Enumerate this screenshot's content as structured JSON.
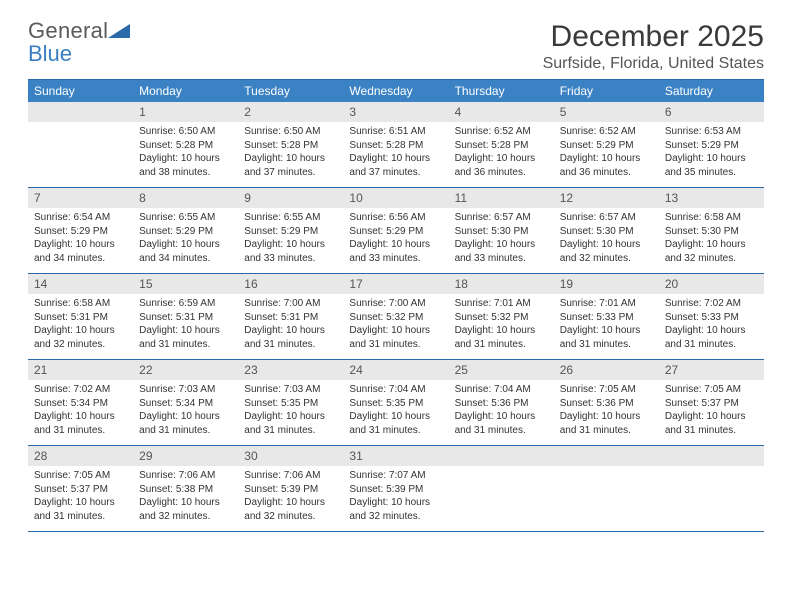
{
  "logo": {
    "general": "General",
    "blue": "Blue"
  },
  "title": "December 2025",
  "location": "Surfside, Florida, United States",
  "colors": {
    "header_bg": "#3b82c4",
    "rule": "#2a6aa8",
    "daynum_bg": "#e8e8e8",
    "text": "#333333"
  },
  "days": [
    "Sunday",
    "Monday",
    "Tuesday",
    "Wednesday",
    "Thursday",
    "Friday",
    "Saturday"
  ],
  "weeks": [
    [
      null,
      {
        "n": "1",
        "sr": "Sunrise: 6:50 AM",
        "ss": "Sunset: 5:28 PM",
        "dl1": "Daylight: 10 hours",
        "dl2": "and 38 minutes."
      },
      {
        "n": "2",
        "sr": "Sunrise: 6:50 AM",
        "ss": "Sunset: 5:28 PM",
        "dl1": "Daylight: 10 hours",
        "dl2": "and 37 minutes."
      },
      {
        "n": "3",
        "sr": "Sunrise: 6:51 AM",
        "ss": "Sunset: 5:28 PM",
        "dl1": "Daylight: 10 hours",
        "dl2": "and 37 minutes."
      },
      {
        "n": "4",
        "sr": "Sunrise: 6:52 AM",
        "ss": "Sunset: 5:28 PM",
        "dl1": "Daylight: 10 hours",
        "dl2": "and 36 minutes."
      },
      {
        "n": "5",
        "sr": "Sunrise: 6:52 AM",
        "ss": "Sunset: 5:29 PM",
        "dl1": "Daylight: 10 hours",
        "dl2": "and 36 minutes."
      },
      {
        "n": "6",
        "sr": "Sunrise: 6:53 AM",
        "ss": "Sunset: 5:29 PM",
        "dl1": "Daylight: 10 hours",
        "dl2": "and 35 minutes."
      }
    ],
    [
      {
        "n": "7",
        "sr": "Sunrise: 6:54 AM",
        "ss": "Sunset: 5:29 PM",
        "dl1": "Daylight: 10 hours",
        "dl2": "and 34 minutes."
      },
      {
        "n": "8",
        "sr": "Sunrise: 6:55 AM",
        "ss": "Sunset: 5:29 PM",
        "dl1": "Daylight: 10 hours",
        "dl2": "and 34 minutes."
      },
      {
        "n": "9",
        "sr": "Sunrise: 6:55 AM",
        "ss": "Sunset: 5:29 PM",
        "dl1": "Daylight: 10 hours",
        "dl2": "and 33 minutes."
      },
      {
        "n": "10",
        "sr": "Sunrise: 6:56 AM",
        "ss": "Sunset: 5:29 PM",
        "dl1": "Daylight: 10 hours",
        "dl2": "and 33 minutes."
      },
      {
        "n": "11",
        "sr": "Sunrise: 6:57 AM",
        "ss": "Sunset: 5:30 PM",
        "dl1": "Daylight: 10 hours",
        "dl2": "and 33 minutes."
      },
      {
        "n": "12",
        "sr": "Sunrise: 6:57 AM",
        "ss": "Sunset: 5:30 PM",
        "dl1": "Daylight: 10 hours",
        "dl2": "and 32 minutes."
      },
      {
        "n": "13",
        "sr": "Sunrise: 6:58 AM",
        "ss": "Sunset: 5:30 PM",
        "dl1": "Daylight: 10 hours",
        "dl2": "and 32 minutes."
      }
    ],
    [
      {
        "n": "14",
        "sr": "Sunrise: 6:58 AM",
        "ss": "Sunset: 5:31 PM",
        "dl1": "Daylight: 10 hours",
        "dl2": "and 32 minutes."
      },
      {
        "n": "15",
        "sr": "Sunrise: 6:59 AM",
        "ss": "Sunset: 5:31 PM",
        "dl1": "Daylight: 10 hours",
        "dl2": "and 31 minutes."
      },
      {
        "n": "16",
        "sr": "Sunrise: 7:00 AM",
        "ss": "Sunset: 5:31 PM",
        "dl1": "Daylight: 10 hours",
        "dl2": "and 31 minutes."
      },
      {
        "n": "17",
        "sr": "Sunrise: 7:00 AM",
        "ss": "Sunset: 5:32 PM",
        "dl1": "Daylight: 10 hours",
        "dl2": "and 31 minutes."
      },
      {
        "n": "18",
        "sr": "Sunrise: 7:01 AM",
        "ss": "Sunset: 5:32 PM",
        "dl1": "Daylight: 10 hours",
        "dl2": "and 31 minutes."
      },
      {
        "n": "19",
        "sr": "Sunrise: 7:01 AM",
        "ss": "Sunset: 5:33 PM",
        "dl1": "Daylight: 10 hours",
        "dl2": "and 31 minutes."
      },
      {
        "n": "20",
        "sr": "Sunrise: 7:02 AM",
        "ss": "Sunset: 5:33 PM",
        "dl1": "Daylight: 10 hours",
        "dl2": "and 31 minutes."
      }
    ],
    [
      {
        "n": "21",
        "sr": "Sunrise: 7:02 AM",
        "ss": "Sunset: 5:34 PM",
        "dl1": "Daylight: 10 hours",
        "dl2": "and 31 minutes."
      },
      {
        "n": "22",
        "sr": "Sunrise: 7:03 AM",
        "ss": "Sunset: 5:34 PM",
        "dl1": "Daylight: 10 hours",
        "dl2": "and 31 minutes."
      },
      {
        "n": "23",
        "sr": "Sunrise: 7:03 AM",
        "ss": "Sunset: 5:35 PM",
        "dl1": "Daylight: 10 hours",
        "dl2": "and 31 minutes."
      },
      {
        "n": "24",
        "sr": "Sunrise: 7:04 AM",
        "ss": "Sunset: 5:35 PM",
        "dl1": "Daylight: 10 hours",
        "dl2": "and 31 minutes."
      },
      {
        "n": "25",
        "sr": "Sunrise: 7:04 AM",
        "ss": "Sunset: 5:36 PM",
        "dl1": "Daylight: 10 hours",
        "dl2": "and 31 minutes."
      },
      {
        "n": "26",
        "sr": "Sunrise: 7:05 AM",
        "ss": "Sunset: 5:36 PM",
        "dl1": "Daylight: 10 hours",
        "dl2": "and 31 minutes."
      },
      {
        "n": "27",
        "sr": "Sunrise: 7:05 AM",
        "ss": "Sunset: 5:37 PM",
        "dl1": "Daylight: 10 hours",
        "dl2": "and 31 minutes."
      }
    ],
    [
      {
        "n": "28",
        "sr": "Sunrise: 7:05 AM",
        "ss": "Sunset: 5:37 PM",
        "dl1": "Daylight: 10 hours",
        "dl2": "and 31 minutes."
      },
      {
        "n": "29",
        "sr": "Sunrise: 7:06 AM",
        "ss": "Sunset: 5:38 PM",
        "dl1": "Daylight: 10 hours",
        "dl2": "and 32 minutes."
      },
      {
        "n": "30",
        "sr": "Sunrise: 7:06 AM",
        "ss": "Sunset: 5:39 PM",
        "dl1": "Daylight: 10 hours",
        "dl2": "and 32 minutes."
      },
      {
        "n": "31",
        "sr": "Sunrise: 7:07 AM",
        "ss": "Sunset: 5:39 PM",
        "dl1": "Daylight: 10 hours",
        "dl2": "and 32 minutes."
      },
      null,
      null,
      null
    ]
  ]
}
